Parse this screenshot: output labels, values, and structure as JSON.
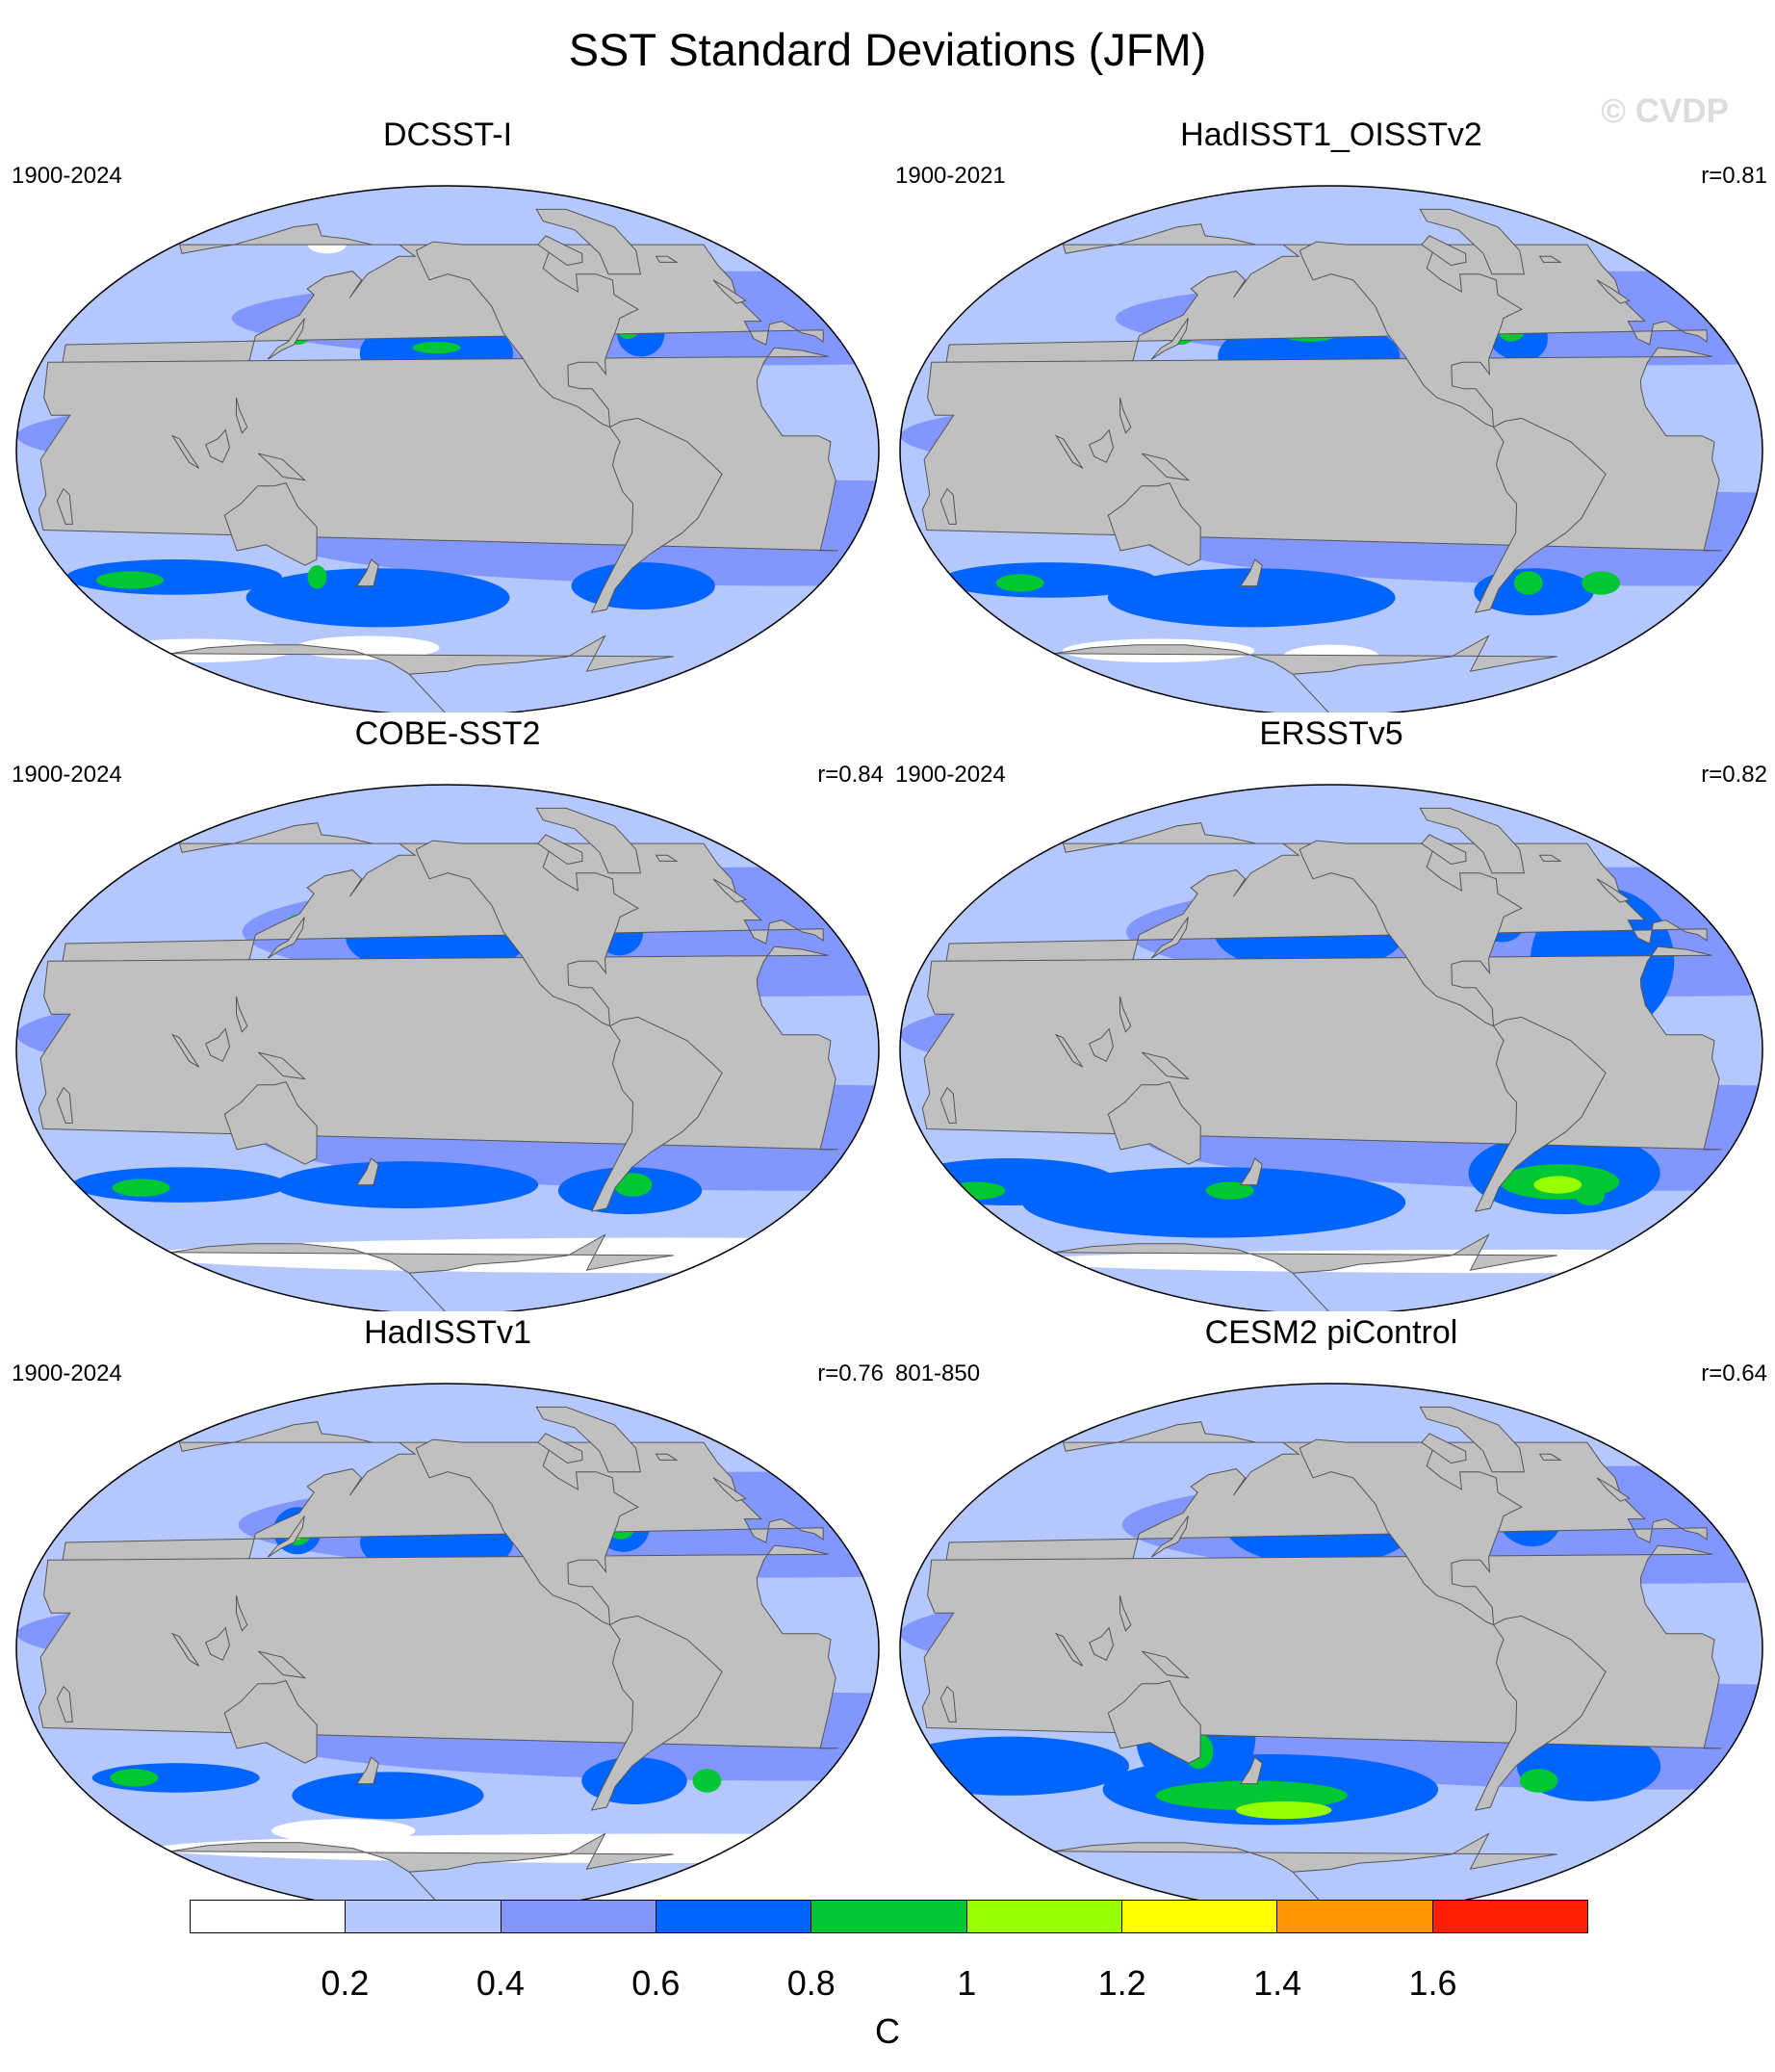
{
  "title": "SST Standard Deviations (JFM)",
  "watermark": "© CVDP",
  "panels": [
    {
      "title": "DCSST-I",
      "years": "1900-2024",
      "corr": "",
      "style": "base"
    },
    {
      "title": "HadISST1_OISSTv2",
      "years": "1900-2021",
      "corr": "r=0.81",
      "style": "had"
    },
    {
      "title": "COBE-SST2",
      "years": "1900-2024",
      "corr": "r=0.84",
      "style": "cobe"
    },
    {
      "title": "ERSSTv5",
      "years": "1900-2024",
      "corr": "r=0.82",
      "style": "ersst"
    },
    {
      "title": "HadISSTv1",
      "years": "1900-2024",
      "corr": "r=0.76",
      "style": "had1"
    },
    {
      "title": "CESM2 piControl",
      "years": "801-850",
      "corr": "r=0.64",
      "style": "cesm"
    }
  ],
  "colorbar": {
    "colors": [
      "#ffffff",
      "#b4c8ff",
      "#8296ff",
      "#0064ff",
      "#00c832",
      "#96ff00",
      "#ffff00",
      "#ff9600",
      "#ff1e00"
    ],
    "labels": [
      "0.2",
      "0.4",
      "0.6",
      "0.8",
      "1",
      "1.2",
      "1.4",
      "1.6"
    ],
    "unit": "C"
  },
  "colors": {
    "land": "#c0c0c0",
    "ocean_low": "#b4c8ff"
  }
}
